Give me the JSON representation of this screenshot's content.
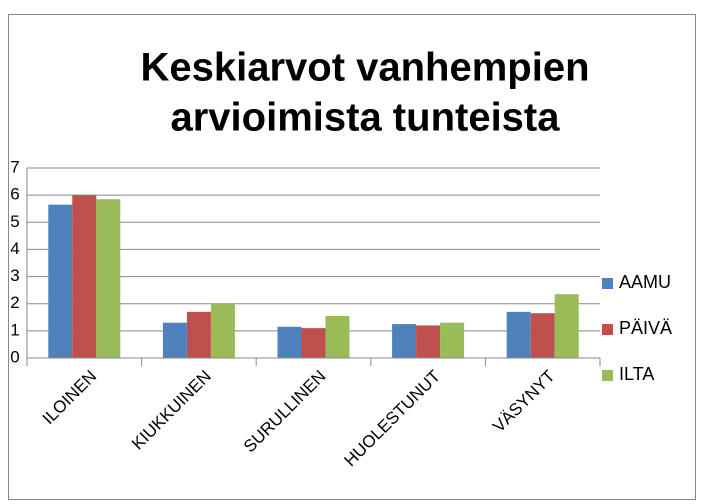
{
  "chart_data": {
    "type": "bar",
    "title": [
      "Keskiarvot vanhempien",
      "arvioimista tunteista"
    ],
    "categories": [
      "ILOINEN",
      "KIUKKUINEN",
      "SURULLINEN",
      "HUOLESTUNUT",
      "VÄSYNYT"
    ],
    "series": [
      {
        "name": "AAMU",
        "color": "#4f81bd",
        "values": [
          5.65,
          1.3,
          1.15,
          1.25,
          1.7
        ]
      },
      {
        "name": "PÄIVÄ",
        "color": "#c0504d",
        "values": [
          6.0,
          1.7,
          1.1,
          1.2,
          1.65
        ]
      },
      {
        "name": "ILTA",
        "color": "#9bbb59",
        "values": [
          5.85,
          2.0,
          1.55,
          1.3,
          2.35
        ]
      }
    ],
    "ylim": [
      0,
      7
    ],
    "yticks": [
      0,
      1,
      2,
      3,
      4,
      5,
      6,
      7
    ],
    "grid": true,
    "legend": "right"
  }
}
